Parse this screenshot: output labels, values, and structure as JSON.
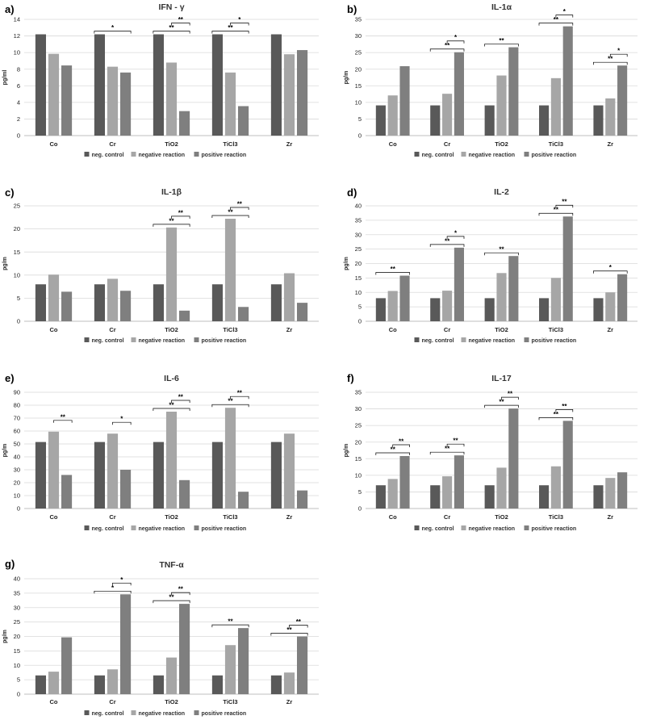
{
  "colors": {
    "neg_control": "#595959",
    "negative_reaction": "#a6a6a6",
    "positive_reaction": "#7f7f7f"
  },
  "chart_data": [
    {
      "type": "bar",
      "panel_letter": "a)",
      "title": "IFN - γ",
      "ylabel": "pg/ml",
      "ylim": [
        0,
        14
      ],
      "yticks": [
        0,
        2,
        4,
        6,
        8,
        10,
        12,
        14
      ],
      "categories": [
        "Co",
        "Cr",
        "TiO2",
        "TiCl3",
        "Zr"
      ],
      "series": [
        {
          "name": "neg. control",
          "values": [
            12.2,
            12.2,
            12.2,
            12.2,
            12.2
          ]
        },
        {
          "name": "negative reaction",
          "values": [
            9.85,
            8.3,
            8.8,
            7.6,
            9.8
          ]
        },
        {
          "name": "positive reaction",
          "values": [
            8.45,
            7.6,
            2.95,
            3.55,
            10.3
          ]
        }
      ],
      "brackets": [
        {
          "cat": 1,
          "from": 0,
          "to": 2,
          "level": 0,
          "label": "*"
        },
        {
          "cat": 2,
          "from": 0,
          "to": 2,
          "level": 0,
          "label": "**"
        },
        {
          "cat": 2,
          "from": 1,
          "to": 2,
          "level": 1,
          "label": "**"
        },
        {
          "cat": 3,
          "from": 0,
          "to": 2,
          "level": 0,
          "label": "**"
        },
        {
          "cat": 3,
          "from": 1,
          "to": 2,
          "level": 1,
          "label": "*"
        }
      ]
    },
    {
      "type": "bar",
      "panel_letter": "b)",
      "title": "IL-1α",
      "ylabel": "pg/m",
      "ylim": [
        0,
        35
      ],
      "yticks": [
        0,
        5,
        10,
        15,
        20,
        25,
        30,
        35
      ],
      "categories": [
        "Co",
        "Cr",
        "TiO2",
        "TiCl3",
        "Zr"
      ],
      "series": [
        {
          "name": "neg. control",
          "values": [
            9.1,
            9.1,
            9.1,
            9.1,
            9.1
          ]
        },
        {
          "name": "negative reaction",
          "values": [
            12.1,
            12.6,
            18.1,
            17.3,
            11.2
          ]
        },
        {
          "name": "positive reaction",
          "values": [
            20.9,
            25.1,
            26.6,
            32.9,
            21.1
          ]
        }
      ],
      "brackets": [
        {
          "cat": 1,
          "from": 0,
          "to": 2,
          "level": 0,
          "label": "**"
        },
        {
          "cat": 1,
          "from": 1,
          "to": 2,
          "level": 1,
          "label": "*"
        },
        {
          "cat": 2,
          "from": 0,
          "to": 2,
          "level": 0,
          "label": "**"
        },
        {
          "cat": 3,
          "from": 0,
          "to": 2,
          "level": 0,
          "label": "**"
        },
        {
          "cat": 3,
          "from": 1,
          "to": 2,
          "level": 1,
          "label": "*"
        },
        {
          "cat": 4,
          "from": 0,
          "to": 2,
          "level": 0,
          "label": "**"
        },
        {
          "cat": 4,
          "from": 1,
          "to": 2,
          "level": 1,
          "label": "*"
        }
      ]
    },
    {
      "type": "bar",
      "panel_letter": "c)",
      "title": "IL-1β",
      "ylabel": "pg/m",
      "ylim": [
        0,
        25
      ],
      "yticks": [
        0,
        5,
        10,
        15,
        20,
        25
      ],
      "categories": [
        "Co",
        "Cr",
        "TiO2",
        "TiCl3",
        "Zr"
      ],
      "series": [
        {
          "name": "neg. control",
          "values": [
            8.0,
            8.0,
            8.0,
            8.0,
            8.0
          ]
        },
        {
          "name": "negative reaction",
          "values": [
            10.1,
            9.2,
            20.3,
            22.2,
            10.4
          ]
        },
        {
          "name": "positive reaction",
          "values": [
            6.4,
            6.6,
            2.3,
            3.1,
            4.0
          ]
        }
      ],
      "brackets": [
        {
          "cat": 2,
          "from": 0,
          "to": 2,
          "level": 0,
          "label": "**"
        },
        {
          "cat": 2,
          "from": 1,
          "to": 2,
          "level": 1,
          "label": "**"
        },
        {
          "cat": 3,
          "from": 0,
          "to": 2,
          "level": 0,
          "label": "**"
        },
        {
          "cat": 3,
          "from": 1,
          "to": 2,
          "level": 1,
          "label": "**"
        }
      ]
    },
    {
      "type": "bar",
      "panel_letter": "d)",
      "title": "IL-2",
      "ylabel": "pg/m",
      "ylim": [
        0,
        40
      ],
      "yticks": [
        0,
        5,
        10,
        15,
        20,
        25,
        30,
        35,
        40
      ],
      "categories": [
        "Co",
        "Cr",
        "TiO2",
        "TiCl3",
        "Zr"
      ],
      "series": [
        {
          "name": "neg. control",
          "values": [
            8.0,
            8.0,
            8.0,
            8.0,
            8.0
          ]
        },
        {
          "name": "negative reaction",
          "values": [
            10.5,
            10.6,
            16.7,
            15.0,
            10.0
          ]
        },
        {
          "name": "positive reaction",
          "values": [
            15.8,
            25.5,
            22.6,
            36.3,
            16.3
          ]
        }
      ],
      "brackets": [
        {
          "cat": 0,
          "from": 0,
          "to": 2,
          "level": 0,
          "label": "**"
        },
        {
          "cat": 1,
          "from": 0,
          "to": 2,
          "level": 0,
          "label": "**"
        },
        {
          "cat": 1,
          "from": 1,
          "to": 2,
          "level": 1,
          "label": "*"
        },
        {
          "cat": 2,
          "from": 0,
          "to": 2,
          "level": 0,
          "label": "**"
        },
        {
          "cat": 3,
          "from": 0,
          "to": 2,
          "level": 0,
          "label": "**"
        },
        {
          "cat": 3,
          "from": 1,
          "to": 2,
          "level": 1,
          "label": "**"
        },
        {
          "cat": 4,
          "from": 0,
          "to": 2,
          "level": 0,
          "label": "*"
        }
      ]
    },
    {
      "type": "bar",
      "panel_letter": "e)",
      "title": "IL-6",
      "ylabel": "pg/m",
      "ylim": [
        0,
        90
      ],
      "yticks": [
        0,
        10,
        20,
        30,
        40,
        50,
        60,
        70,
        80,
        90
      ],
      "categories": [
        "Co",
        "Cr",
        "TiO2",
        "TiCl3",
        "Zr"
      ],
      "series": [
        {
          "name": "neg. control",
          "values": [
            51.5,
            51.5,
            51.5,
            51.5,
            51.5
          ]
        },
        {
          "name": "negative reaction",
          "values": [
            59.5,
            58.0,
            75.0,
            78.0,
            58.0
          ]
        },
        {
          "name": "positive reaction",
          "values": [
            26.0,
            30.0,
            22.0,
            13.0,
            14.0
          ]
        }
      ],
      "brackets": [
        {
          "cat": 0,
          "from": 1,
          "to": 2,
          "level": 1,
          "label": "**"
        },
        {
          "cat": 1,
          "from": 1,
          "to": 2,
          "level": 1,
          "label": "*"
        },
        {
          "cat": 2,
          "from": 0,
          "to": 2,
          "level": 0,
          "label": "**"
        },
        {
          "cat": 2,
          "from": 1,
          "to": 2,
          "level": 1,
          "label": "**"
        },
        {
          "cat": 3,
          "from": 0,
          "to": 2,
          "level": 0,
          "label": "**"
        },
        {
          "cat": 3,
          "from": 1,
          "to": 2,
          "level": 1,
          "label": "**"
        }
      ]
    },
    {
      "type": "bar",
      "panel_letter": "f)",
      "title": "IL-17",
      "ylabel": "pg/m",
      "ylim": [
        0,
        35
      ],
      "yticks": [
        0,
        5,
        10,
        15,
        20,
        25,
        30,
        35
      ],
      "categories": [
        "Co",
        "Cr",
        "TiO2",
        "TiCl3",
        "Zr"
      ],
      "series": [
        {
          "name": "neg. control",
          "values": [
            7.0,
            7.0,
            7.0,
            7.0,
            7.0
          ]
        },
        {
          "name": "negative reaction",
          "values": [
            8.9,
            9.7,
            12.3,
            12.7,
            9.2
          ]
        },
        {
          "name": "positive reaction",
          "values": [
            15.8,
            16.0,
            30.1,
            26.4,
            10.9
          ]
        }
      ],
      "brackets": [
        {
          "cat": 0,
          "from": 0,
          "to": 2,
          "level": 0,
          "label": "**"
        },
        {
          "cat": 0,
          "from": 1,
          "to": 2,
          "level": 1,
          "label": "**"
        },
        {
          "cat": 1,
          "from": 0,
          "to": 2,
          "level": 0,
          "label": "**"
        },
        {
          "cat": 1,
          "from": 1,
          "to": 2,
          "level": 1,
          "label": "**"
        },
        {
          "cat": 2,
          "from": 0,
          "to": 2,
          "level": 0,
          "label": "**"
        },
        {
          "cat": 2,
          "from": 1,
          "to": 2,
          "level": 1,
          "label": "**"
        },
        {
          "cat": 3,
          "from": 0,
          "to": 2,
          "level": 0,
          "label": "**"
        },
        {
          "cat": 3,
          "from": 1,
          "to": 2,
          "level": 1,
          "label": "**"
        }
      ]
    },
    {
      "type": "bar",
      "panel_letter": "g)",
      "title": "TNF-α",
      "ylabel": "pg/m",
      "ylim": [
        0,
        40
      ],
      "yticks": [
        0,
        5,
        10,
        15,
        20,
        25,
        30,
        35,
        40
      ],
      "categories": [
        "Co",
        "Cr",
        "TiO2",
        "TiCl3",
        "Zr"
      ],
      "series": [
        {
          "name": "neg. control",
          "values": [
            6.5,
            6.5,
            6.5,
            6.5,
            6.5
          ]
        },
        {
          "name": "negative reaction",
          "values": [
            7.8,
            8.6,
            12.7,
            17.0,
            7.5
          ]
        },
        {
          "name": "positive reaction",
          "values": [
            19.7,
            34.6,
            31.3,
            22.9,
            20.0
          ]
        }
      ],
      "brackets": [
        {
          "cat": 1,
          "from": 0,
          "to": 2,
          "level": 0,
          "label": "*"
        },
        {
          "cat": 1,
          "from": 1,
          "to": 2,
          "level": 1,
          "label": "*"
        },
        {
          "cat": 2,
          "from": 0,
          "to": 2,
          "level": 0,
          "label": "**"
        },
        {
          "cat": 2,
          "from": 1,
          "to": 2,
          "level": 1,
          "label": "**"
        },
        {
          "cat": 3,
          "from": 0,
          "to": 2,
          "level": 0,
          "label": "**"
        },
        {
          "cat": 4,
          "from": 0,
          "to": 2,
          "level": 0,
          "label": "**"
        },
        {
          "cat": 4,
          "from": 1,
          "to": 2,
          "level": 1,
          "label": "**"
        }
      ]
    }
  ]
}
